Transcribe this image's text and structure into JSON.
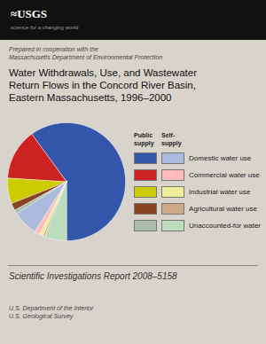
{
  "chart_data": {
    "type": "pie",
    "title": "Water Withdrawals, Use, and Wastewater\nReturn Flows in the Concord River Basin,\nEastern Massachusetts, 1996–2000",
    "subtitle": "Prepared in cooperation with the\nMassachusetts Department of Environmental Protection",
    "annotations": [
      "≈USGS",
      "science for a changing world",
      "Scientific Investigations Report 2008–5158",
      "U.S. Department of the Interior",
      "U.S. Geological Survey"
    ],
    "categories": [
      "Domestic water use",
      "Commercial water use",
      "Industrial water use",
      "Agricultural water use",
      "Unaccounted-for water"
    ],
    "series": [
      {
        "name": "Public\nsupply",
        "values": [
          60,
          14,
          7,
          2,
          1
        ],
        "colors": [
          "#3355aa",
          "#cc2222",
          "#cccc00",
          "#884422",
          "#aabbaa"
        ]
      },
      {
        "name": "Self-\nsupply",
        "values": [
          7,
          1.5,
          1,
          0.5,
          6
        ],
        "colors": [
          "#aabbdd",
          "#ffbbbb",
          "#eeee99",
          "#ccaa88",
          "#bbddbb"
        ]
      }
    ],
    "legend": "right"
  }
}
